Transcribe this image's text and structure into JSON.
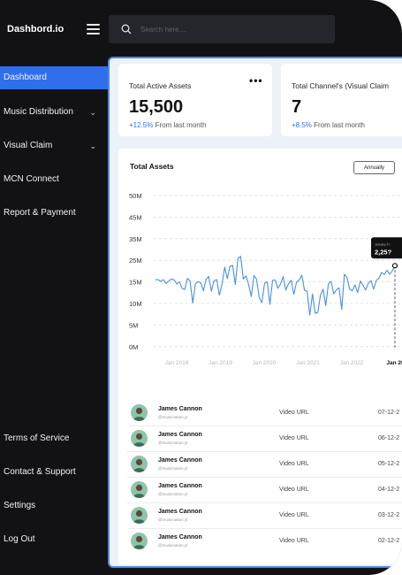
{
  "app": {
    "brand": "Dashbord.io"
  },
  "search": {
    "placeholder": "Search here...."
  },
  "sidebar": {
    "items": [
      {
        "label": "Dashboard",
        "active": true
      },
      {
        "label": "Music Distribution",
        "chevron": true
      },
      {
        "label": "Visual Claim",
        "chevron": true
      },
      {
        "label": "MCN Connect"
      },
      {
        "label": "Report & Payment"
      }
    ],
    "bottom": [
      {
        "label": "Terms of Service"
      },
      {
        "label": "Contact & Support"
      },
      {
        "label": "Settings"
      },
      {
        "label": "Log Out"
      }
    ]
  },
  "stats": [
    {
      "title": "Total Active Assets",
      "value": "15,500",
      "change": "+12.5%",
      "change_text": "From last month"
    },
    {
      "title": "Total Channel's (Visual Claim",
      "value": "7",
      "change": "+8.5%",
      "change_text": "From last month"
    }
  ],
  "chart_card": {
    "title": "Total Assets",
    "range_button": "Annually"
  },
  "chart_data": {
    "type": "line",
    "y_ticks": [
      "50M",
      "45M",
      "35M",
      "25M",
      "15M",
      "10M",
      "5M",
      "0M"
    ],
    "x_ticks": [
      "Jan 2018",
      "Jan 2019",
      "Jan 2020",
      "Jan 2021",
      "Jan 2022",
      "Jan 20"
    ],
    "x_tick_active_index": 5,
    "tooltip": {
      "label": "January 2?",
      "value": "2,25?"
    },
    "values": [
      16,
      16,
      15.2,
      16,
      14.6,
      15.4,
      16.3,
      15.9,
      14.5,
      15,
      13.5,
      13.2,
      16.6,
      15.4,
      10.1,
      14.6,
      15.1,
      14.8,
      12.9,
      16.1,
      17.5,
      12.8,
      15.5,
      16,
      11.9,
      14.5,
      21.8,
      16.5,
      22.3,
      22.6,
      14.4,
      25.9,
      26.8,
      16.3,
      17.8,
      14.4,
      11.6,
      17.9,
      16.2,
      11.4,
      10.2,
      14.7,
      15,
      9.8,
      15.7,
      15.8,
      13.5,
      14.5,
      17.4,
      13.1,
      14.6,
      15.7,
      12.1,
      14.9,
      15.8,
      18.1,
      13.1,
      12.8,
      7.3,
      12.2,
      7.7,
      7.9,
      11.9,
      13.3,
      9.5,
      14.5,
      15.3,
      12.2,
      13.2,
      13.6,
      8.6,
      18.5,
      17,
      13.3,
      12.9,
      14.3,
      12.5,
      15.4,
      14.2,
      13.1,
      14.7,
      15.6,
      13.3,
      15.7,
      16.6,
      19.3,
      18.4,
      20.4,
      18.5,
      20.1,
      22.5
    ],
    "ylabel": "",
    "xlabel": ""
  },
  "table": {
    "rows": [
      {
        "name": "James Cannon",
        "handle": "@musicnation.yt",
        "link": "Video URL",
        "date": "07-12-2"
      },
      {
        "name": "James Cannon",
        "handle": "@musicnation.yt",
        "link": "Video URL",
        "date": "06-12-2"
      },
      {
        "name": "James Cannon",
        "handle": "@musicnation.yt",
        "link": "Video URL",
        "date": "05-12-2"
      },
      {
        "name": "James Cannon",
        "handle": "@musicnation.yt",
        "link": "Video URL",
        "date": "04-12-2"
      },
      {
        "name": "James Cannon",
        "handle": "@musicnation.yt",
        "link": "Video URL",
        "date": "03-12-2"
      },
      {
        "name": "James Cannon",
        "handle": "@musicnation.yt",
        "link": "Video URL",
        "date": "02-12-2"
      }
    ]
  },
  "colors": {
    "accent": "#2f6fec",
    "sidebar_bg": "#121214",
    "line": "#4a90e2"
  },
  "icons": {
    "search": "search-icon",
    "menu": "hamburger-icon",
    "more": "more-icon",
    "chevron": "chevron-down-icon",
    "avatar": "avatar-icon"
  }
}
